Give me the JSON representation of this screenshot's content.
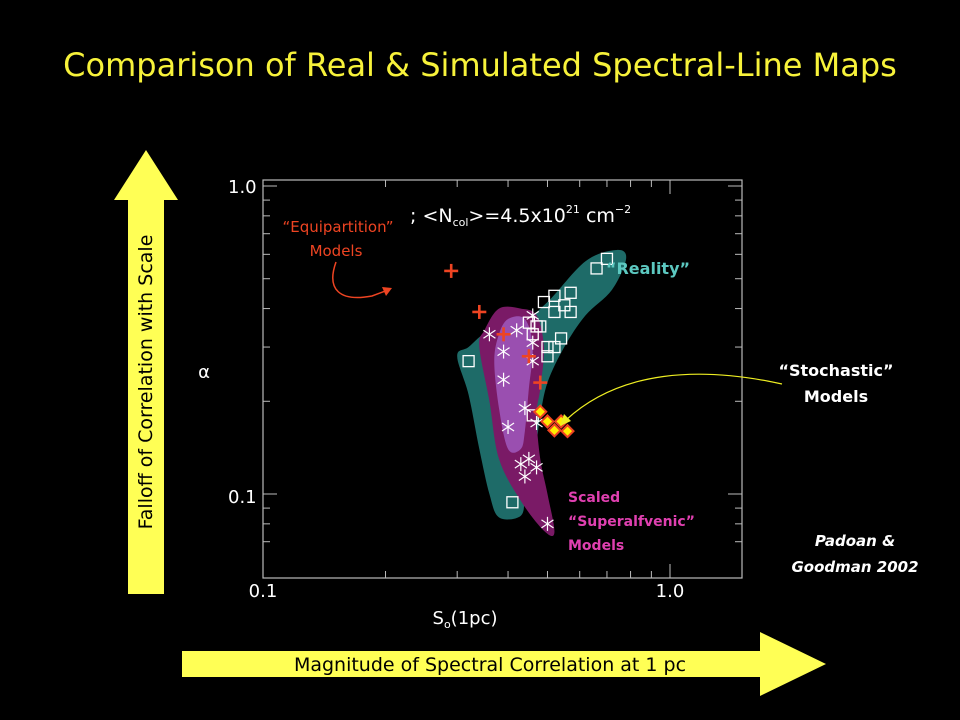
{
  "slide": {
    "title": "Comparison of Real & Simulated Spectral-Line Maps",
    "credit_line1": "Padoan &",
    "credit_line2": "Goodman 2002",
    "y_arrow_label": "Falloff of Correlation with Scale",
    "x_arrow_label": "Magnitude of Spectral Correlation at 1 pc"
  },
  "annotations": {
    "equipartition_line1": "“Equipartition”",
    "equipartition_line2": "Models",
    "reality": "“Reality”",
    "stochastic_line1": "“Stochastic”",
    "stochastic_line2": "Models",
    "scaled_line1": "Scaled",
    "scaled_line2": "“Superalfvenic”",
    "scaled_line3": "Models",
    "colors": {
      "equipartition": "#ee4422",
      "reality": "#5cc8c0",
      "stochastic": "#ffffff",
      "scaled": "#e040b0"
    }
  },
  "chart_data": {
    "type": "scatter",
    "xlabel": "S",
    "xlabel_sub": "o",
    "xlabel_rest": "(1pc)",
    "ylabel": "α",
    "x_scale": "log",
    "y_scale": "log",
    "xlim": [
      0.1,
      1.7
    ],
    "ylim": [
      0.065,
      1.05
    ],
    "x_ticks": [
      0.1,
      1.0
    ],
    "x_tick_labels": [
      "0.1",
      "1.0"
    ],
    "y_ticks": [
      0.1,
      1.0
    ],
    "y_tick_labels": [
      "0.1",
      "1.0"
    ],
    "header_text": "; <N",
    "header_sub": "col",
    "header_mid": ">=4.5x10",
    "header_sup": "21",
    "header_unit": " cm",
    "header_unit_sup": "−2",
    "series": [
      {
        "name": "“Reality”",
        "marker": "square",
        "color": "#ffffff",
        "points": [
          [
            0.7,
            0.58
          ],
          [
            0.66,
            0.54
          ],
          [
            0.57,
            0.45
          ],
          [
            0.52,
            0.44
          ],
          [
            0.55,
            0.41
          ],
          [
            0.57,
            0.39
          ],
          [
            0.49,
            0.42
          ],
          [
            0.52,
            0.39
          ],
          [
            0.45,
            0.36
          ],
          [
            0.47,
            0.35
          ],
          [
            0.48,
            0.35
          ],
          [
            0.46,
            0.33
          ],
          [
            0.54,
            0.32
          ],
          [
            0.5,
            0.3
          ],
          [
            0.52,
            0.3
          ],
          [
            0.5,
            0.28
          ],
          [
            0.32,
            0.27
          ],
          [
            0.46,
            0.18
          ],
          [
            0.41,
            0.094
          ]
        ]
      },
      {
        "name": "Scaled “Superalfvenic” Models",
        "marker": "asterisk",
        "color": "#ffffff",
        "points": [
          [
            0.46,
            0.38
          ],
          [
            0.42,
            0.34
          ],
          [
            0.46,
            0.31
          ],
          [
            0.36,
            0.33
          ],
          [
            0.39,
            0.29
          ],
          [
            0.46,
            0.27
          ],
          [
            0.39,
            0.235
          ],
          [
            0.44,
            0.19
          ],
          [
            0.47,
            0.17
          ],
          [
            0.4,
            0.165
          ],
          [
            0.45,
            0.13
          ],
          [
            0.43,
            0.125
          ],
          [
            0.47,
            0.122
          ],
          [
            0.44,
            0.114
          ],
          [
            0.5,
            0.08
          ]
        ]
      },
      {
        "name": "“Equipartition” Models",
        "marker": "plus",
        "color": "#ee4422",
        "points": [
          [
            0.29,
            0.53
          ],
          [
            0.34,
            0.39
          ],
          [
            0.39,
            0.33
          ],
          [
            0.45,
            0.28
          ],
          [
            0.48,
            0.23
          ]
        ]
      },
      {
        "name": "“Stochastic” Models",
        "marker": "diamond",
        "color": "#ffee00",
        "points": [
          [
            0.48,
            0.185
          ],
          [
            0.5,
            0.172
          ],
          [
            0.52,
            0.161
          ],
          [
            0.54,
            0.172
          ],
          [
            0.56,
            0.16
          ]
        ]
      }
    ],
    "regions": [
      {
        "name": "reality-region",
        "color": "#1e6b68",
        "outline": [
          [
            0.74,
            0.62
          ],
          [
            0.78,
            0.58
          ],
          [
            0.72,
            0.46
          ],
          [
            0.62,
            0.38
          ],
          [
            0.55,
            0.3
          ],
          [
            0.5,
            0.23
          ],
          [
            0.48,
            0.18
          ],
          [
            0.47,
            0.15
          ],
          [
            0.45,
            0.13
          ],
          [
            0.44,
            0.1
          ],
          [
            0.43,
            0.085
          ],
          [
            0.38,
            0.084
          ],
          [
            0.36,
            0.1
          ],
          [
            0.34,
            0.14
          ],
          [
            0.32,
            0.21
          ],
          [
            0.3,
            0.28
          ],
          [
            0.32,
            0.3
          ],
          [
            0.36,
            0.34
          ],
          [
            0.43,
            0.36
          ],
          [
            0.5,
            0.42
          ],
          [
            0.62,
            0.57
          ]
        ]
      },
      {
        "name": "superalfvenic-region",
        "color": "#7a1a66",
        "outline": [
          [
            0.38,
            0.4
          ],
          [
            0.43,
            0.4
          ],
          [
            0.47,
            0.38
          ],
          [
            0.49,
            0.3
          ],
          [
            0.48,
            0.22
          ],
          [
            0.47,
            0.18
          ],
          [
            0.48,
            0.13
          ],
          [
            0.5,
            0.1
          ],
          [
            0.52,
            0.075
          ],
          [
            0.49,
            0.076
          ],
          [
            0.43,
            0.095
          ],
          [
            0.38,
            0.13
          ],
          [
            0.36,
            0.2
          ],
          [
            0.34,
            0.3
          ],
          [
            0.35,
            0.34
          ]
        ]
      },
      {
        "name": "superalfvenic-inner-region",
        "color": "#9a4fb0",
        "outline": [
          [
            0.4,
            0.37
          ],
          [
            0.44,
            0.37
          ],
          [
            0.46,
            0.3
          ],
          [
            0.45,
            0.22
          ],
          [
            0.44,
            0.16
          ],
          [
            0.43,
            0.14
          ],
          [
            0.4,
            0.14
          ],
          [
            0.38,
            0.19
          ],
          [
            0.37,
            0.27
          ],
          [
            0.38,
            0.33
          ]
        ]
      }
    ]
  }
}
